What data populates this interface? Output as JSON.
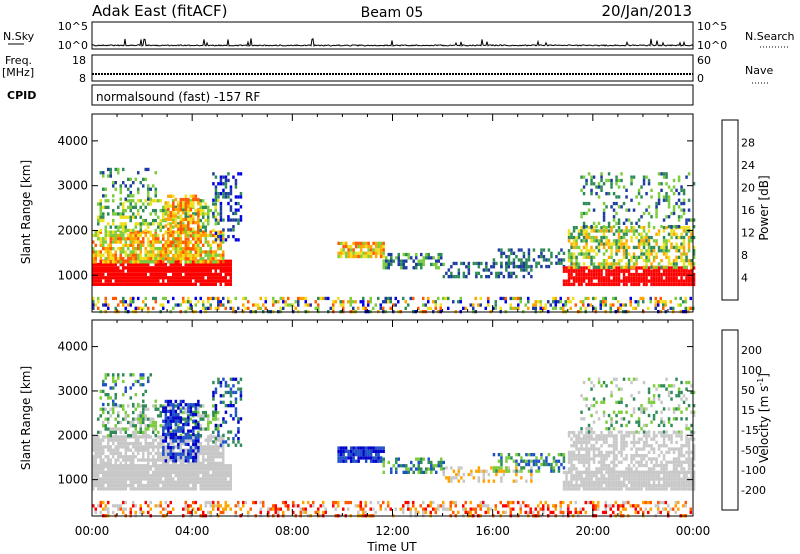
{
  "header": {
    "station": "Adak East (fitACF)",
    "beam": "Beam 05",
    "date": "20/Jan/2013"
  },
  "strips": {
    "nsky_label": "N.Sky",
    "nsky_ticks": [
      "10^5",
      "10^0"
    ],
    "nsearch_label": "N.Search",
    "nsearch_ticks": [
      "10^5",
      "10^0"
    ],
    "freq_label": "Freq.",
    "freq_unit": "[MHz]",
    "freq_ticks": [
      "18",
      "8"
    ],
    "nave_label": "Nave",
    "nave_ticks": [
      "60",
      "0"
    ],
    "cpid_label": "CPID",
    "cpid_text": "normalsound (fast) -157 RF"
  },
  "chart_data": [
    {
      "type": "heatmap",
      "panel": "power",
      "ylabel": "Slant Range [km]",
      "yticks": [
        1000,
        2000,
        3000,
        4000
      ],
      "ylim": [
        180,
        4600
      ],
      "xlim_hours": [
        0,
        24
      ],
      "colorbar_label": "Power [dB]",
      "colorbar_ticks": [
        "28",
        "24",
        "20",
        "16",
        "12",
        "8",
        "4"
      ],
      "colors": [
        "#0000e6",
        "#1e3ca0",
        "#2e8b57",
        "#7ccd3c",
        "#f0e020",
        "#ffa500",
        "#ff5a00",
        "#ff0000"
      ]
    },
    {
      "type": "heatmap",
      "panel": "velocity",
      "ylabel": "Slant Range [km]",
      "yticks": [
        1000,
        2000,
        3000,
        4000
      ],
      "ylim": [
        180,
        4600
      ],
      "xlim_hours": [
        0,
        24
      ],
      "xlabel": "Time UT",
      "xticks": [
        "00:00",
        "04:00",
        "08:00",
        "12:00",
        "16:00",
        "20:00",
        "00:00"
      ],
      "colorbar_label": "Velocity [m s",
      "colorbar_label_sup": "-1",
      "colorbar_label_end": "]",
      "colorbar_ticks": [
        "200",
        "100",
        "50",
        "15",
        "-15",
        "-50",
        "-100",
        "-200"
      ],
      "colors": [
        "#0000cd",
        "#1e50c8",
        "#2e8b57",
        "#7ccd3c",
        "#c8c8c8",
        "#ffa500",
        "#ff5a00",
        "#ff0000"
      ]
    }
  ]
}
